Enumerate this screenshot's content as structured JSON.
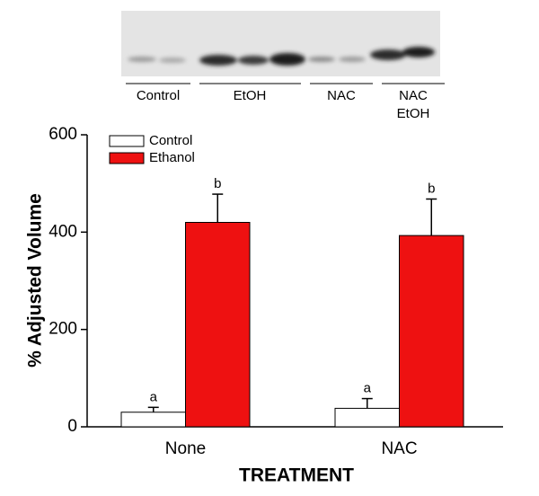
{
  "chart_data": {
    "type": "bar",
    "blot_labels": [
      [
        "Control"
      ],
      [
        "EtOH"
      ],
      [
        "NAC"
      ],
      [
        "NAC",
        "EtOH"
      ]
    ],
    "categories": [
      "None",
      "NAC"
    ],
    "series": [
      {
        "name": "Control",
        "color": "#ffffff",
        "values": [
          30,
          38
        ],
        "errors": [
          10,
          20
        ],
        "annotations": [
          "a",
          "a"
        ]
      },
      {
        "name": "Ethanol",
        "color": "#ee1111",
        "values": [
          420,
          393
        ],
        "errors": [
          58,
          75
        ],
        "annotations": [
          "b",
          "b"
        ]
      }
    ],
    "ylabel": "% Adjusted Volume",
    "xlabel": "TREATMENT",
    "ylim": [
      0,
      600
    ],
    "yticks": [
      0,
      200,
      400,
      600
    ],
    "legend": "upper left"
  }
}
